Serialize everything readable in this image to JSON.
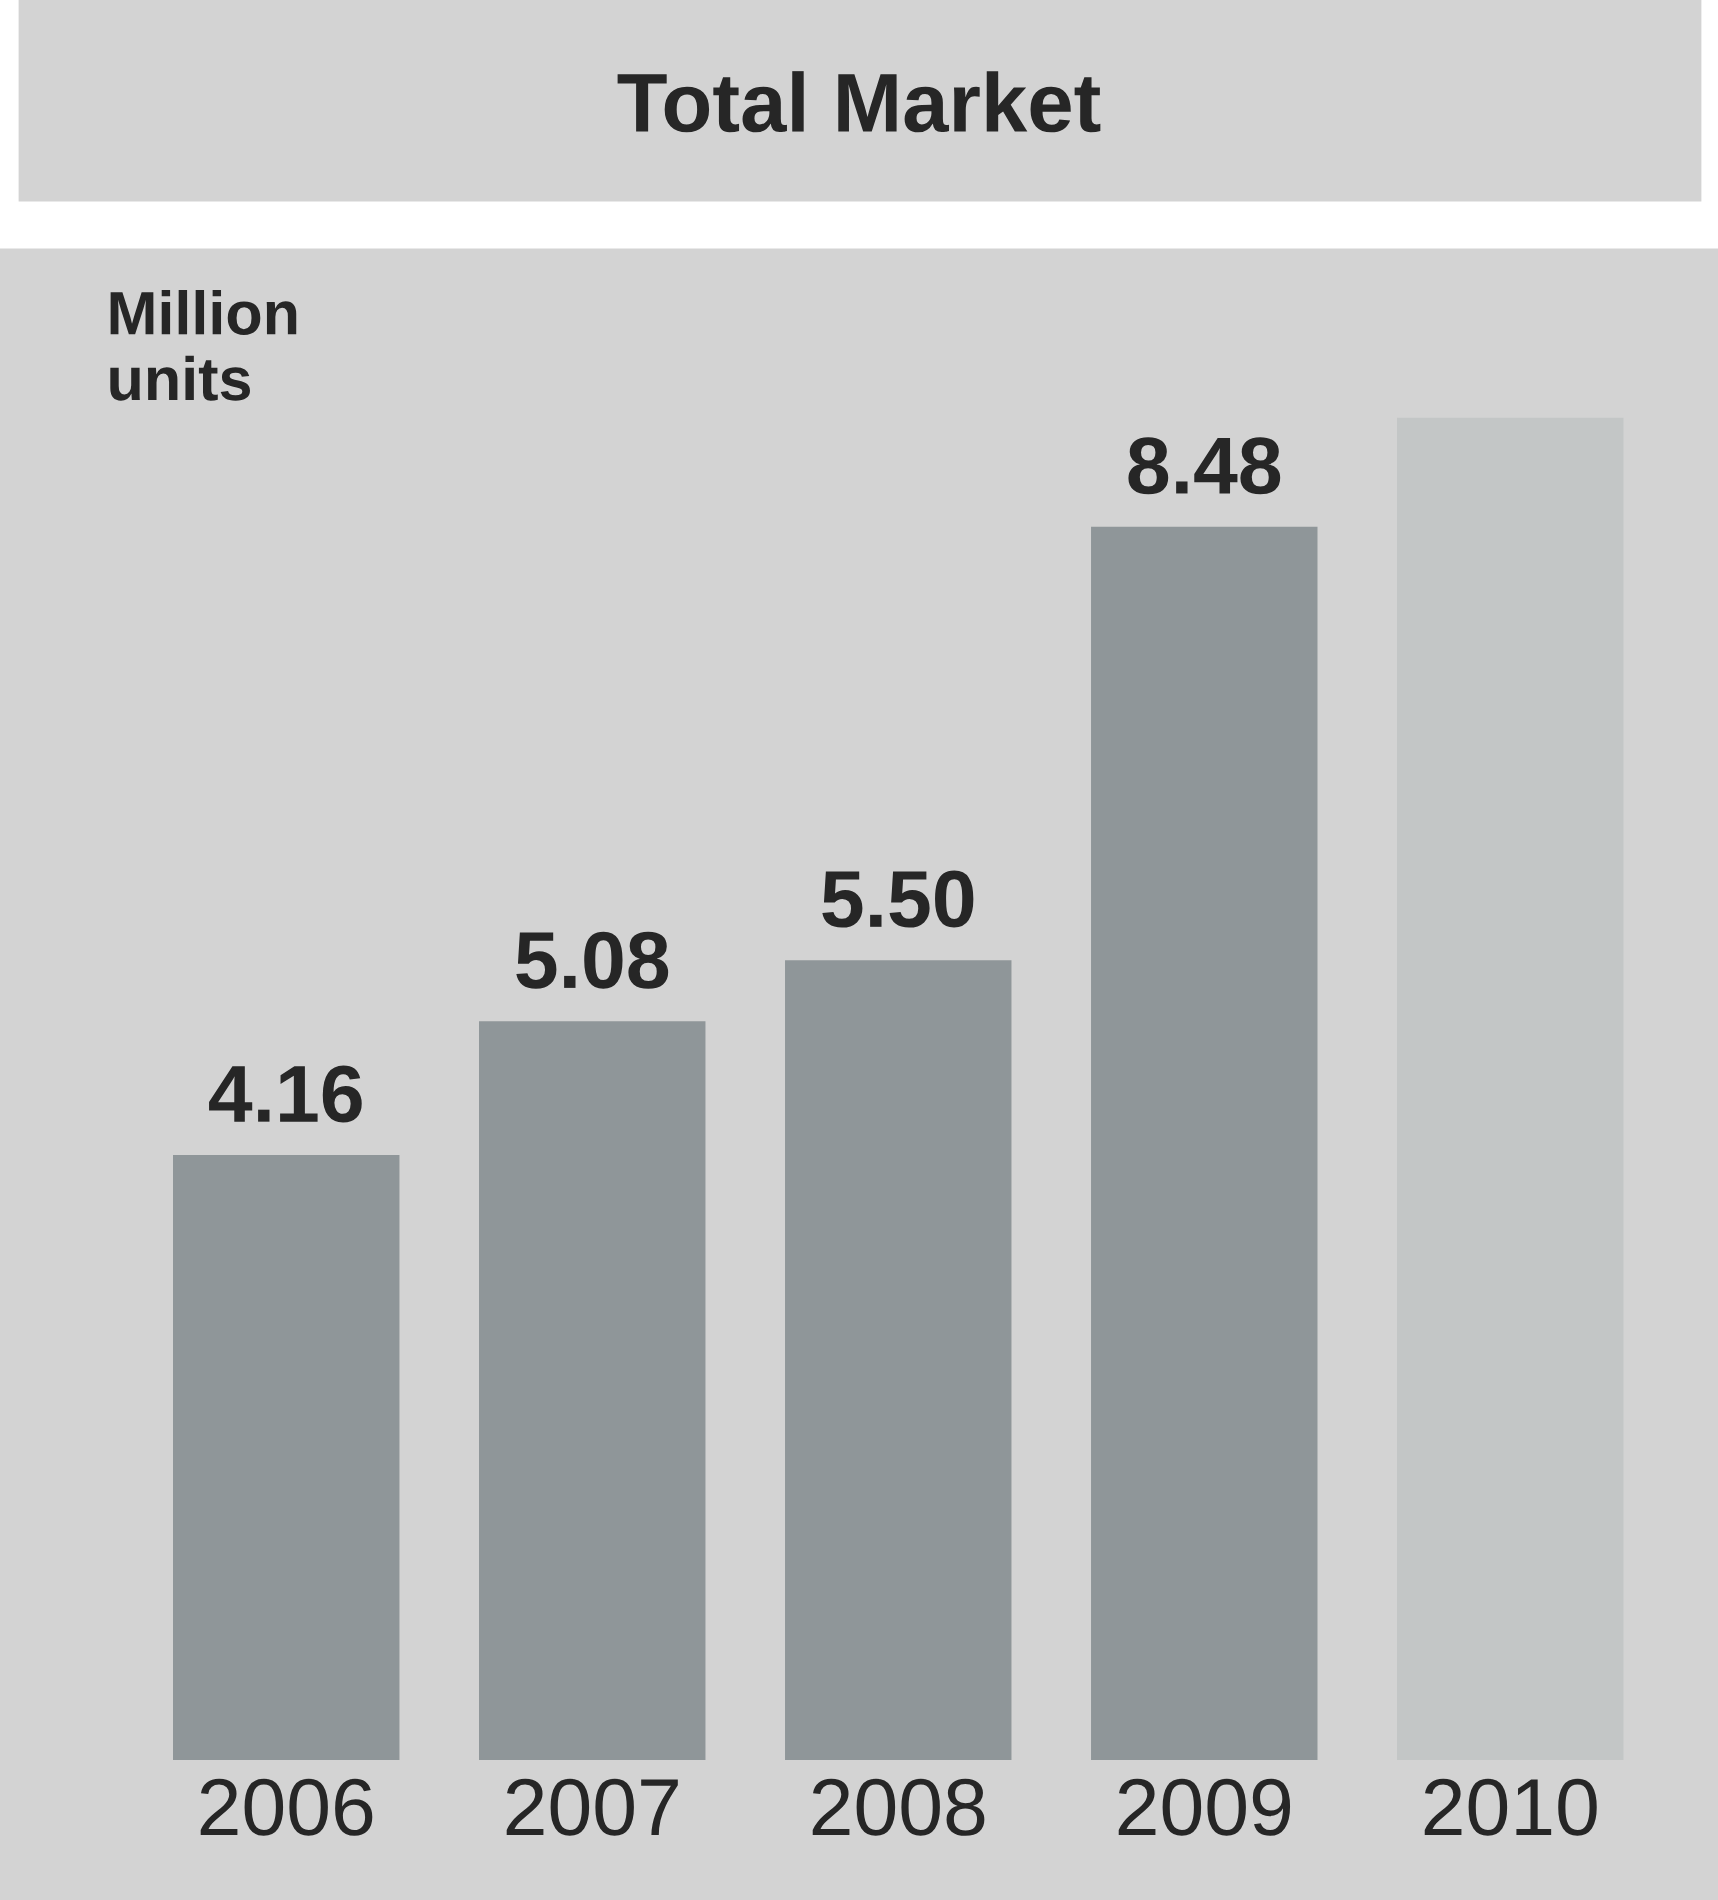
{
  "chart_data": {
    "type": "bar",
    "title": "Total Market",
    "ylabel": "Million units",
    "categories": [
      "2006",
      "2007",
      "2008",
      "2009",
      "2010"
    ],
    "values": [
      4.16,
      5.08,
      5.5,
      8.48,
      9.23
    ],
    "value_labels": [
      "4.16",
      "5.08",
      "5.50",
      "8.48",
      null
    ],
    "colors": [
      "#8f9699",
      "#8f9699",
      "#8f9699",
      "#8f9699",
      "#c3c6c6"
    ],
    "legend": false
  }
}
